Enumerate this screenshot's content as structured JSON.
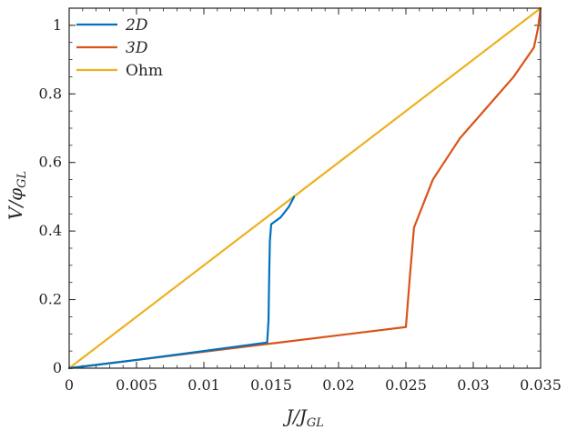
{
  "chart_data": {
    "type": "line",
    "xlabel": "J/J_GL",
    "ylabel": "V/φ_GL",
    "xlim": [
      0,
      0.035
    ],
    "ylim": [
      0,
      1.05
    ],
    "x_ticks": [
      0,
      0.005,
      0.01,
      0.015,
      0.02,
      0.025,
      0.03,
      0.035
    ],
    "x_tick_labels": [
      "0",
      "0.005",
      "0.01",
      "0.015",
      "0.02",
      "0.025",
      "0.03",
      "0.035"
    ],
    "y_ticks": [
      0,
      0.2,
      0.4,
      0.6,
      0.8,
      1
    ],
    "y_tick_labels": [
      "0",
      "0.2",
      "0.4",
      "0.6",
      "0.8",
      "1"
    ],
    "legend_position": "top-left",
    "series": [
      {
        "name": "2D",
        "color": "#0072BD",
        "x": [
          0,
          0.005,
          0.01,
          0.0147,
          0.0148,
          0.01485,
          0.0149,
          0.015,
          0.0157,
          0.0163,
          0.0167
        ],
        "y": [
          0,
          0.024,
          0.05,
          0.075,
          0.14,
          0.27,
          0.37,
          0.42,
          0.44,
          0.47,
          0.5
        ]
      },
      {
        "name": "3D",
        "color": "#D95319",
        "x": [
          0,
          0.005,
          0.01,
          0.015,
          0.02,
          0.025,
          0.0253,
          0.0256,
          0.027,
          0.029,
          0.031,
          0.033,
          0.0345,
          0.0348,
          0.035
        ],
        "y": [
          0,
          0.024,
          0.048,
          0.072,
          0.096,
          0.12,
          0.27,
          0.41,
          0.55,
          0.67,
          0.76,
          0.85,
          0.935,
          0.99,
          1.05
        ]
      },
      {
        "name": "Ohm",
        "color": "#EDB120",
        "x": [
          0,
          0.035
        ],
        "y": [
          0,
          1.05
        ]
      }
    ]
  }
}
